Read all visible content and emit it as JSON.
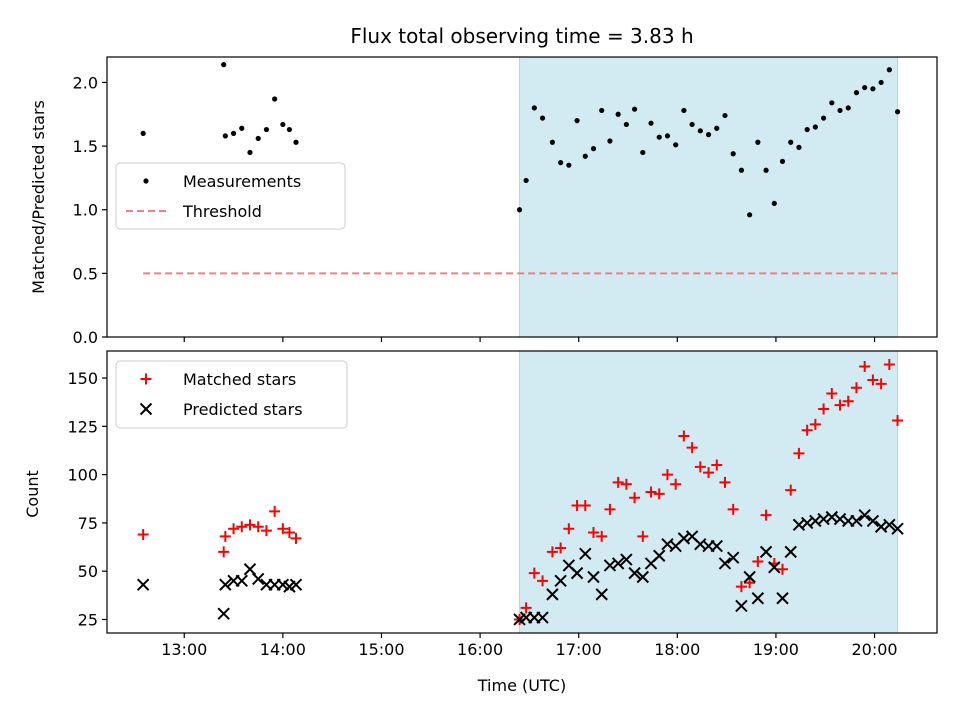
{
  "chart_data": [
    {
      "type": "scatter",
      "title": "Flux total observing time = 3.83 h",
      "xlabel": "",
      "ylabel": "Matched/Predicted stars",
      "xlim": [
        "12:13",
        "20:38"
      ],
      "ylim": [
        0,
        2.2
      ],
      "yticks": [
        "0.0",
        "0.5",
        "1.0",
        "1.5",
        "2.0"
      ],
      "xticks": [
        "13:00",
        "14:00",
        "15:00",
        "16:00",
        "17:00",
        "18:00",
        "19:00",
        "20:00"
      ],
      "shaded_interval": [
        "16:24",
        "20:14"
      ],
      "shade_color": "#add8e6",
      "legend": [
        "Measurements",
        "Threshold"
      ],
      "threshold": {
        "name": "Threshold",
        "value": 0.5,
        "x_range": [
          "12:35",
          "20:14"
        ],
        "color": "#f08080",
        "style": "dashed"
      },
      "series": [
        {
          "name": "Measurements",
          "marker": "dot",
          "color": "#000000",
          "points": [
            [
              "12:35",
              1.6
            ],
            [
              "13:24",
              2.14
            ],
            [
              "13:25",
              1.58
            ],
            [
              "13:30",
              1.6
            ],
            [
              "13:35",
              1.64
            ],
            [
              "13:40",
              1.45
            ],
            [
              "13:45",
              1.56
            ],
            [
              "13:50",
              1.63
            ],
            [
              "13:55",
              1.87
            ],
            [
              "14:00",
              1.67
            ],
            [
              "14:04",
              1.63
            ],
            [
              "14:08",
              1.53
            ],
            [
              "16:24",
              1.0
            ],
            [
              "16:28",
              1.23
            ],
            [
              "16:33",
              1.8
            ],
            [
              "16:38",
              1.72
            ],
            [
              "16:44",
              1.53
            ],
            [
              "16:49",
              1.37
            ],
            [
              "16:54",
              1.35
            ],
            [
              "16:59",
              1.7
            ],
            [
              "17:04",
              1.42
            ],
            [
              "17:09",
              1.48
            ],
            [
              "17:14",
              1.78
            ],
            [
              "17:19",
              1.54
            ],
            [
              "17:24",
              1.75
            ],
            [
              "17:29",
              1.67
            ],
            [
              "17:34",
              1.79
            ],
            [
              "17:39",
              1.45
            ],
            [
              "17:44",
              1.68
            ],
            [
              "17:49",
              1.57
            ],
            [
              "17:54",
              1.58
            ],
            [
              "17:59",
              1.51
            ],
            [
              "18:04",
              1.78
            ],
            [
              "18:09",
              1.67
            ],
            [
              "18:14",
              1.62
            ],
            [
              "18:19",
              1.59
            ],
            [
              "18:24",
              1.64
            ],
            [
              "18:29",
              1.74
            ],
            [
              "18:34",
              1.44
            ],
            [
              "18:39",
              1.31
            ],
            [
              "18:44",
              0.96
            ],
            [
              "18:49",
              1.53
            ],
            [
              "18:54",
              1.31
            ],
            [
              "18:59",
              1.05
            ],
            [
              "19:04",
              1.38
            ],
            [
              "19:09",
              1.53
            ],
            [
              "19:14",
              1.49
            ],
            [
              "19:19",
              1.63
            ],
            [
              "19:24",
              1.65
            ],
            [
              "19:29",
              1.72
            ],
            [
              "19:34",
              1.84
            ],
            [
              "19:39",
              1.78
            ],
            [
              "19:44",
              1.8
            ],
            [
              "19:49",
              1.92
            ],
            [
              "19:54",
              1.96
            ],
            [
              "19:59",
              1.95
            ],
            [
              "20:04",
              2.0
            ],
            [
              "20:09",
              2.1
            ],
            [
              "20:14",
              1.77
            ]
          ]
        }
      ]
    },
    {
      "type": "scatter",
      "title": "",
      "xlabel": "Time (UTC)",
      "ylabel": "Count",
      "xlim": [
        "12:13",
        "20:38"
      ],
      "ylim": [
        18,
        164
      ],
      "yticks": [
        "25",
        "50",
        "75",
        "100",
        "125",
        "150"
      ],
      "xticks": [
        "13:00",
        "14:00",
        "15:00",
        "16:00",
        "17:00",
        "18:00",
        "19:00",
        "20:00"
      ],
      "shaded_interval": [
        "16:24",
        "20:14"
      ],
      "shade_color": "#add8e6",
      "legend": [
        "Matched stars",
        "Predicted stars"
      ],
      "series": [
        {
          "name": "Matched stars",
          "marker": "plus",
          "color": "#ff0000",
          "points": [
            [
              "12:35",
              69
            ],
            [
              "13:24",
              60
            ],
            [
              "13:25",
              68
            ],
            [
              "13:30",
              72
            ],
            [
              "13:35",
              73
            ],
            [
              "13:40",
              74
            ],
            [
              "13:45",
              73
            ],
            [
              "13:50",
              71
            ],
            [
              "13:55",
              81
            ],
            [
              "14:00",
              72
            ],
            [
              "14:04",
              70
            ],
            [
              "14:08",
              67
            ],
            [
              "16:24",
              25
            ],
            [
              "16:28",
              31
            ],
            [
              "16:33",
              49
            ],
            [
              "16:38",
              45
            ],
            [
              "16:44",
              60
            ],
            [
              "16:49",
              62
            ],
            [
              "16:54",
              72
            ],
            [
              "16:59",
              84
            ],
            [
              "17:04",
              84
            ],
            [
              "17:09",
              70
            ],
            [
              "17:14",
              68
            ],
            [
              "17:19",
              82
            ],
            [
              "17:24",
              96
            ],
            [
              "17:29",
              95
            ],
            [
              "17:34",
              88
            ],
            [
              "17:39",
              68
            ],
            [
              "17:44",
              91
            ],
            [
              "17:49",
              90
            ],
            [
              "17:54",
              100
            ],
            [
              "17:59",
              95
            ],
            [
              "18:04",
              120
            ],
            [
              "18:09",
              114
            ],
            [
              "18:14",
              104
            ],
            [
              "18:19",
              101
            ],
            [
              "18:24",
              105
            ],
            [
              "18:29",
              96
            ],
            [
              "18:34",
              82
            ],
            [
              "18:39",
              42
            ],
            [
              "18:44",
              44
            ],
            [
              "18:49",
              55
            ],
            [
              "18:54",
              79
            ],
            [
              "18:59",
              54
            ],
            [
              "19:04",
              51
            ],
            [
              "19:09",
              92
            ],
            [
              "19:14",
              111
            ],
            [
              "19:19",
              123
            ],
            [
              "19:24",
              126
            ],
            [
              "19:29",
              134
            ],
            [
              "19:34",
              142
            ],
            [
              "19:39",
              136
            ],
            [
              "19:44",
              138
            ],
            [
              "19:49",
              145
            ],
            [
              "19:54",
              156
            ],
            [
              "19:59",
              149
            ],
            [
              "20:04",
              147
            ],
            [
              "20:09",
              157
            ],
            [
              "20:14",
              128
            ]
          ]
        },
        {
          "name": "Predicted stars",
          "marker": "x",
          "color": "#000000",
          "points": [
            [
              "12:35",
              43
            ],
            [
              "13:24",
              28
            ],
            [
              "13:25",
              43
            ],
            [
              "13:30",
              45
            ],
            [
              "13:35",
              45
            ],
            [
              "13:40",
              51
            ],
            [
              "13:45",
              46
            ],
            [
              "13:50",
              43
            ],
            [
              "13:55",
              43
            ],
            [
              "14:00",
              43
            ],
            [
              "14:04",
              42
            ],
            [
              "14:08",
              43
            ],
            [
              "16:24",
              25
            ],
            [
              "16:28",
              26
            ],
            [
              "16:33",
              26
            ],
            [
              "16:38",
              26
            ],
            [
              "16:44",
              38
            ],
            [
              "16:49",
              45
            ],
            [
              "16:54",
              53
            ],
            [
              "16:59",
              49
            ],
            [
              "17:04",
              59
            ],
            [
              "17:09",
              47
            ],
            [
              "17:14",
              38
            ],
            [
              "17:19",
              53
            ],
            [
              "17:24",
              54
            ],
            [
              "17:29",
              56
            ],
            [
              "17:34",
              49
            ],
            [
              "17:39",
              47
            ],
            [
              "17:44",
              54
            ],
            [
              "17:49",
              58
            ],
            [
              "17:54",
              64
            ],
            [
              "17:59",
              63
            ],
            [
              "18:04",
              67
            ],
            [
              "18:09",
              68
            ],
            [
              "18:14",
              64
            ],
            [
              "18:19",
              63
            ],
            [
              "18:24",
              63
            ],
            [
              "18:29",
              54
            ],
            [
              "18:34",
              57
            ],
            [
              "18:39",
              32
            ],
            [
              "18:44",
              47
            ],
            [
              "18:49",
              36
            ],
            [
              "18:54",
              60
            ],
            [
              "18:59",
              52
            ],
            [
              "19:04",
              36
            ],
            [
              "19:09",
              60
            ],
            [
              "19:14",
              74
            ],
            [
              "19:19",
              75
            ],
            [
              "19:24",
              76
            ],
            [
              "19:29",
              77
            ],
            [
              "19:34",
              78
            ],
            [
              "19:39",
              77
            ],
            [
              "19:44",
              76
            ],
            [
              "19:49",
              76
            ],
            [
              "19:54",
              79
            ],
            [
              "19:59",
              76
            ],
            [
              "20:04",
              73
            ],
            [
              "20:09",
              74
            ],
            [
              "20:14",
              72
            ]
          ]
        }
      ]
    }
  ]
}
